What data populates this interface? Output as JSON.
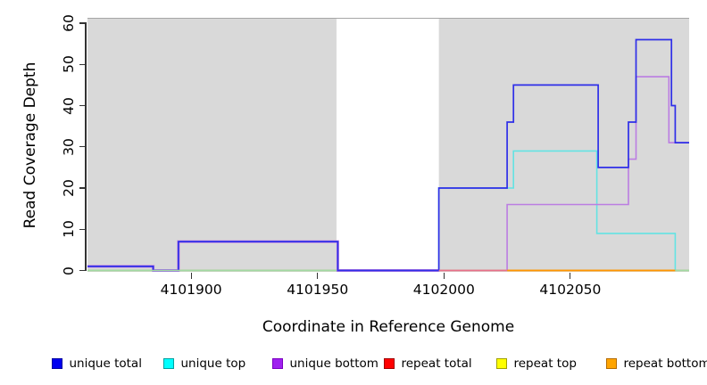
{
  "chart_data": {
    "type": "line",
    "step": true,
    "title": "",
    "xlabel": "Coordinate in Reference Genome",
    "ylabel": "Read Coverage Depth",
    "xlim": [
      4101859,
      4102097
    ],
    "ylim": [
      0,
      61
    ],
    "x_ticks": [
      4101900,
      4101950,
      4102000,
      4102050
    ],
    "x_tick_labels": [
      "4101900",
      "4101950",
      "4102000",
      "4102050"
    ],
    "y_ticks": [
      0,
      10,
      20,
      30,
      40,
      50,
      60
    ],
    "y_tick_labels": [
      "0",
      "10",
      "20",
      "30",
      "40",
      "50",
      "60"
    ],
    "grid": false,
    "plot_bg_color": "#d9d9d9",
    "white_masked_region": [
      4101957.5,
      4101998
    ],
    "series": [
      {
        "name": "unique total",
        "color": "#2f2fe8",
        "width": 1.7,
        "points": [
          [
            4101859,
            1
          ],
          [
            4101885,
            0
          ],
          [
            4101895,
            7
          ],
          [
            4101958,
            0
          ],
          [
            4101998,
            20
          ],
          [
            4102025,
            36
          ],
          [
            4102027.5,
            45
          ],
          [
            4102061,
            25
          ],
          [
            4102073,
            36
          ],
          [
            4102076,
            56
          ],
          [
            4102090,
            40
          ],
          [
            4102091.5,
            31
          ],
          [
            4102097,
            31
          ]
        ]
      },
      {
        "name": "unique top",
        "color": "#63e3e3",
        "width": 1.6,
        "points": [
          [
            4101859,
            0
          ],
          [
            4101998,
            20
          ],
          [
            4102027.5,
            29
          ],
          [
            4102060.5,
            9
          ],
          [
            4102091.5,
            0
          ],
          [
            4102097,
            0
          ]
        ]
      },
      {
        "name": "unique bottom",
        "color": "#bb7de2",
        "width": 1.6,
        "points": [
          [
            4101859,
            1
          ],
          [
            4101885,
            0
          ],
          [
            4101895,
            7
          ],
          [
            4101958,
            0
          ],
          [
            4102025,
            16
          ],
          [
            4102073,
            27
          ],
          [
            4102076,
            47
          ],
          [
            4102089,
            31
          ],
          [
            4102097,
            31
          ]
        ]
      },
      {
        "name": "repeat total",
        "color": "#e8708a",
        "width": 1.5,
        "points": [
          [
            4101859,
            0
          ],
          [
            4102097,
            0
          ]
        ]
      },
      {
        "name": "repeat top",
        "color": "#eded4f",
        "width": 1.5,
        "points": [
          [
            4101859,
            0
          ],
          [
            4102097,
            0
          ]
        ]
      },
      {
        "name": "repeat bottom",
        "color": "#ff9500",
        "width": 1.5,
        "points": [
          [
            4101859,
            0
          ],
          [
            4102097,
            0
          ]
        ]
      }
    ],
    "baseline_segments": [
      {
        "from": 4101859,
        "to": 4101957.5,
        "color": "#a2d9a2",
        "width": 1.5
      },
      {
        "from": 4101998,
        "to": 4102025,
        "color": "#e8708a",
        "width": 1.6
      },
      {
        "from": 4102025,
        "to": 4102091.5,
        "color": "#ff9500",
        "width": 1.8
      },
      {
        "from": 4102091.5,
        "to": 4102097,
        "color": "#a2d9a2",
        "width": 1.5
      }
    ]
  },
  "legend": {
    "items": [
      {
        "label": "unique total",
        "fill": "#0000f0",
        "border": "#0000a0"
      },
      {
        "label": "unique top",
        "fill": "#00ffff",
        "border": "#00a0a0"
      },
      {
        "label": "unique bottom",
        "fill": "#a020f0",
        "border": "#7a00c0"
      },
      {
        "label": "repeat total",
        "fill": "#ff0000",
        "border": "#a00000"
      },
      {
        "label": "repeat top",
        "fill": "#ffff00",
        "border": "#a0a000"
      },
      {
        "label": "repeat bottom",
        "fill": "#ffa500",
        "border": "#b36b00"
      }
    ]
  }
}
